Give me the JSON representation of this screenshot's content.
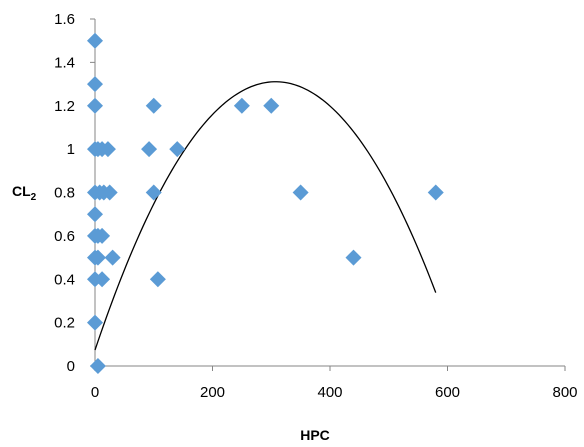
{
  "chart_data": {
    "type": "scatter",
    "xlabel": "HPC",
    "ylabel": {
      "main": "CL",
      "subscript": "2"
    },
    "xlim": [
      0,
      800
    ],
    "ylim": [
      0,
      1.6
    ],
    "xticks": [
      0,
      200,
      400,
      600,
      800
    ],
    "yticks": [
      0,
      0.2,
      0.4,
      0.6,
      0.8,
      1,
      1.2,
      1.4,
      1.6
    ],
    "ytick_labels": [
      "0",
      "0.2",
      "0.4",
      "0.6",
      "0.8",
      "1",
      "1.2",
      "1.4",
      "1.6"
    ],
    "grid": false,
    "legend": "none",
    "marker_color": "#5B9BD5",
    "line_color": "#000000",
    "points": [
      {
        "x": 0,
        "y": 1.5
      },
      {
        "x": 0,
        "y": 1.3
      },
      {
        "x": 0,
        "y": 1.2
      },
      {
        "x": 0,
        "y": 1.0
      },
      {
        "x": 0,
        "y": 0.8
      },
      {
        "x": 0,
        "y": 0.7
      },
      {
        "x": 0,
        "y": 0.6
      },
      {
        "x": 0,
        "y": 0.5
      },
      {
        "x": 0,
        "y": 0.4
      },
      {
        "x": 0,
        "y": 0.2
      },
      {
        "x": 5,
        "y": 0.0
      },
      {
        "x": 5,
        "y": 1.0
      },
      {
        "x": 12,
        "y": 1.0
      },
      {
        "x": 22,
        "y": 1.0
      },
      {
        "x": 8,
        "y": 0.8
      },
      {
        "x": 15,
        "y": 0.8
      },
      {
        "x": 25,
        "y": 0.8
      },
      {
        "x": 5,
        "y": 0.6
      },
      {
        "x": 12,
        "y": 0.6
      },
      {
        "x": 5,
        "y": 0.5
      },
      {
        "x": 30,
        "y": 0.5
      },
      {
        "x": 12,
        "y": 0.4
      },
      {
        "x": 92,
        "y": 1.0
      },
      {
        "x": 140,
        "y": 1.0
      },
      {
        "x": 100,
        "y": 1.2
      },
      {
        "x": 100,
        "y": 0.8
      },
      {
        "x": 107,
        "y": 0.4
      },
      {
        "x": 250,
        "y": 1.2
      },
      {
        "x": 300,
        "y": 1.2
      },
      {
        "x": 350,
        "y": 0.8
      },
      {
        "x": 440,
        "y": 0.5
      },
      {
        "x": 580,
        "y": 0.8
      }
    ],
    "trendline": {
      "type": "polynomial",
      "order": 2,
      "coefficients": {
        "a": -1.309e-05,
        "b": 0.008049,
        "c": 0.0734
      },
      "x_range": [
        0,
        580
      ]
    }
  }
}
